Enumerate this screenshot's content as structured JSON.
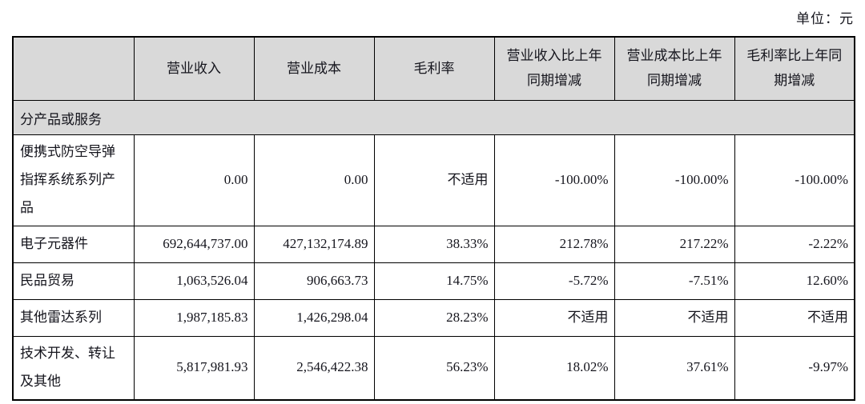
{
  "page": {
    "unit_label": "单位：元"
  },
  "colors": {
    "header_bg": "#d9d9d9",
    "border": "#000000",
    "text": "#15151d",
    "page_bg": "#ffffff"
  },
  "table": {
    "columns": [
      "",
      "营业收入",
      "营业成本",
      "毛利率",
      "营业收入比上年同期增减",
      "营业成本比上年同期增减",
      "毛利率比上年同期增减"
    ],
    "section_header": "分产品或服务",
    "rows": [
      {
        "label": "便携式防空导弹指挥系统系列产品",
        "values": [
          "0.00",
          "0.00",
          "不适用",
          "-100.00%",
          "-100.00%",
          "-100.00%"
        ]
      },
      {
        "label": "电子元器件",
        "values": [
          "692,644,737.00",
          "427,132,174.89",
          "38.33%",
          "212.78%",
          "217.22%",
          "-2.22%"
        ]
      },
      {
        "label": "民品贸易",
        "values": [
          "1,063,526.04",
          "906,663.73",
          "14.75%",
          "-5.72%",
          "-7.51%",
          "12.60%"
        ]
      },
      {
        "label": "其他雷达系列",
        "values": [
          "1,987,185.83",
          "1,426,298.04",
          "28.23%",
          "不适用",
          "不适用",
          "不适用"
        ]
      },
      {
        "label": "技术开发、转让及其他",
        "values": [
          "5,817,981.93",
          "2,546,422.38",
          "56.23%",
          "18.02%",
          "37.61%",
          "-9.97%"
        ]
      }
    ]
  }
}
